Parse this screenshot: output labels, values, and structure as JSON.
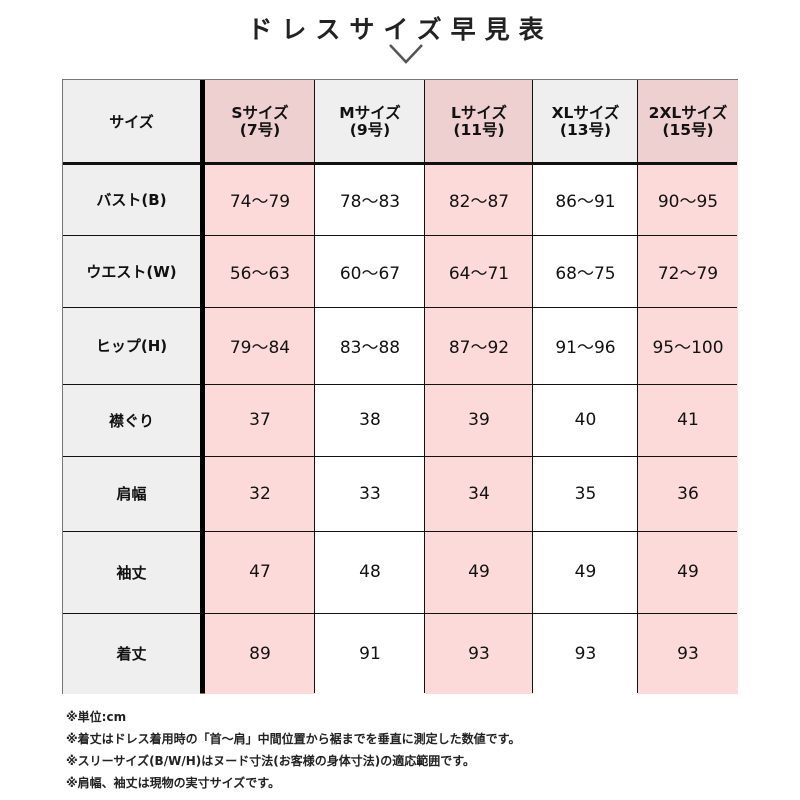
{
  "title": "ドレスサイズ早見表",
  "icons": {
    "chevron": "chevron-down-icon"
  },
  "colors": {
    "header_gray": "#efefef",
    "header_pink": "#efd0d0",
    "body_pink": "#fddada",
    "body_white": "#ffffff",
    "border": "#111111"
  },
  "table": {
    "corner_label": "サイズ",
    "columns": [
      {
        "line1": "Sサイズ",
        "line2": "(7号)"
      },
      {
        "line1": "Mサイズ",
        "line2": "(9号)"
      },
      {
        "line1": "Lサイズ",
        "line2": "(11号)"
      },
      {
        "line1": "XLサイズ",
        "line2": "(13号)"
      },
      {
        "line1": "2XLサイズ",
        "line2": "(15号)"
      }
    ],
    "rows": [
      {
        "label": "バスト(B)",
        "values": [
          "74〜79",
          "78〜83",
          "82〜87",
          "86〜91",
          "90〜95"
        ]
      },
      {
        "label": "ウエスト(W)",
        "values": [
          "56〜63",
          "60〜67",
          "64〜71",
          "68〜75",
          "72〜79"
        ]
      },
      {
        "label": "ヒップ(H)",
        "values": [
          "79〜84",
          "83〜88",
          "87〜92",
          "91〜96",
          "95〜100"
        ]
      },
      {
        "label": "襟ぐり",
        "values": [
          "37",
          "38",
          "39",
          "40",
          "41"
        ]
      },
      {
        "label": "肩幅",
        "values": [
          "32",
          "33",
          "34",
          "35",
          "36"
        ]
      },
      {
        "label": "袖丈",
        "values": [
          "47",
          "48",
          "49",
          "49",
          "49"
        ]
      },
      {
        "label": "着丈",
        "values": [
          "89",
          "91",
          "93",
          "93",
          "93"
        ]
      }
    ]
  },
  "notes": [
    "※単位:cm",
    "※着丈はドレス着用時の「首〜肩」中間位置から裾までを垂直に測定した数値です。",
    "※スリーサイズ(B/W/H)はヌード寸法(お客様の身体寸法)の適応範囲です。",
    "※肩幅、袖丈は現物の実寸サイズです。"
  ]
}
